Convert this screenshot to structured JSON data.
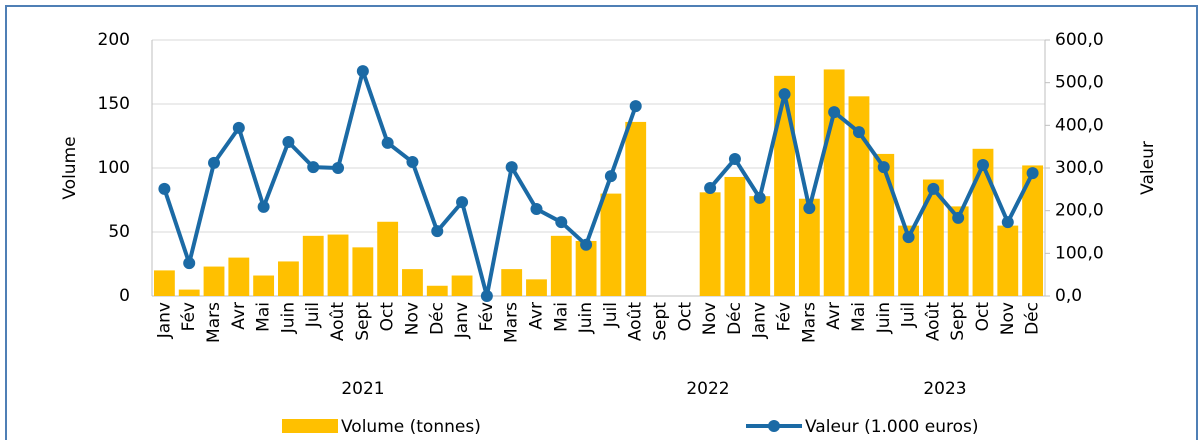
{
  "chart_data": {
    "type": "bar_line",
    "categories": [
      "Janv",
      "Fév",
      "Mars",
      "Avr",
      "Mai",
      "Juin",
      "Juil",
      "Août",
      "Sept",
      "Oct",
      "Nov",
      "Déc",
      "Janv",
      "Fév",
      "Mars",
      "Avr",
      "Mai",
      "Juin",
      "Juil",
      "Août",
      "Sept",
      "Oct",
      "Nov",
      "Déc",
      "Janv",
      "Fév",
      "Mars",
      "Avr",
      "Mai",
      "Juin",
      "Juil",
      "Août",
      "Sept",
      "Oct",
      "Nov",
      "Déc"
    ],
    "years": [
      "2021",
      "2022",
      "2023"
    ],
    "y_label": "Volume",
    "y2_label": "Valeur",
    "ylim": [
      0,
      200
    ],
    "yticks": [
      0,
      50,
      100,
      150,
      200
    ],
    "y2lim": [
      0,
      600
    ],
    "y2ticks": [
      {
        "value": 0,
        "label": "0,0"
      },
      {
        "value": 100,
        "label": "100,0"
      },
      {
        "value": 200,
        "label": "200,0"
      },
      {
        "value": 300,
        "label": "300,0"
      },
      {
        "value": 400,
        "label": "400,0"
      },
      {
        "value": 500,
        "label": "500,0"
      },
      {
        "value": 600,
        "label": "600,0"
      }
    ],
    "grid": true,
    "series": [
      {
        "name": "Volume (tonnes)",
        "type": "bar",
        "color": "#ffc000",
        "values": [
          20,
          5,
          23,
          30,
          16,
          27,
          47,
          48,
          38,
          58,
          21,
          8,
          16,
          0,
          21,
          13,
          47,
          43,
          80,
          136,
          null,
          null,
          81,
          93,
          78,
          172,
          76,
          177,
          156,
          111,
          55,
          91,
          70,
          115,
          55,
          102
        ]
      },
      {
        "name": "Valeur (1.000 euros)",
        "type": "line",
        "axis": "y2",
        "color": "#1b6aa5",
        "values": [
          251,
          77,
          312,
          394,
          209,
          361,
          302,
          300,
          527,
          359,
          314,
          152,
          220,
          0,
          302,
          204,
          173,
          120,
          281,
          445,
          null,
          null,
          253,
          321,
          230,
          473,
          206,
          431,
          384,
          302,
          138,
          251,
          183,
          307,
          173,
          288
        ]
      }
    ]
  }
}
